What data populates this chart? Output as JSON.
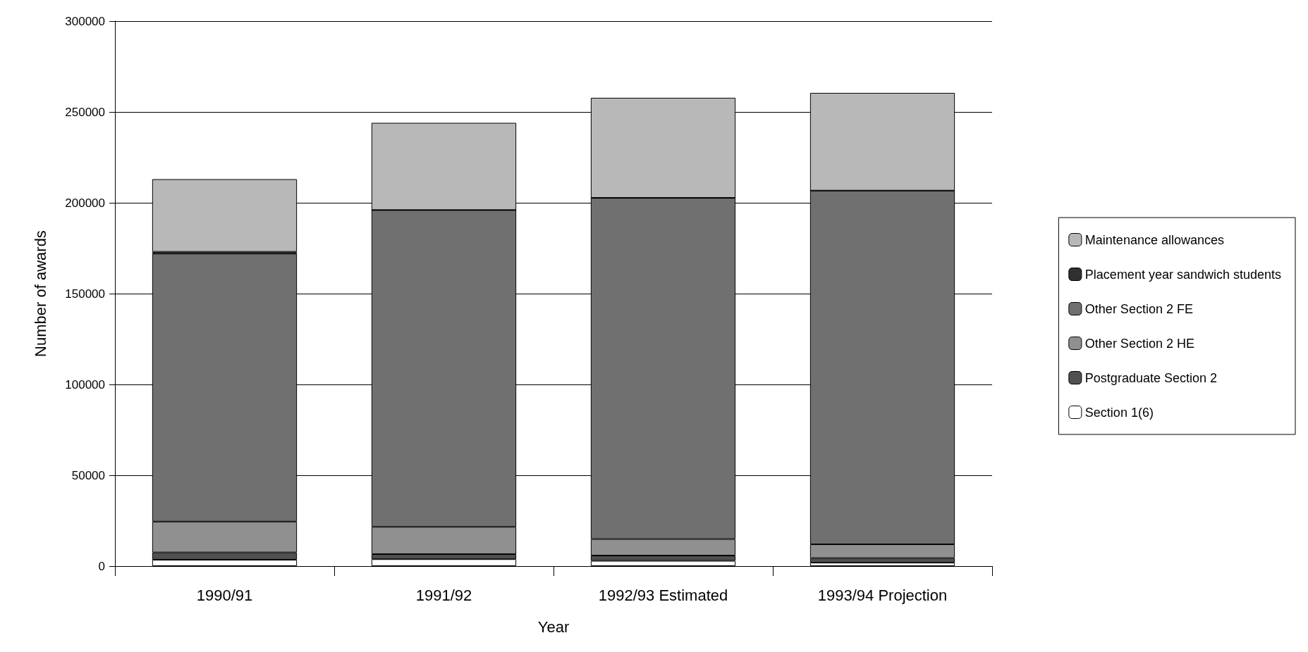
{
  "chart_data": {
    "type": "bar",
    "stacked": true,
    "xlabel": "Year",
    "ylabel": "Number of awards",
    "categories": [
      "1990/91",
      "1991/92",
      "1992/93 Estimated",
      "1993/94 Projection"
    ],
    "series": [
      {
        "name": "Section 1(6)",
        "color": "#ffffff",
        "values": [
          3500,
          3800,
          2900,
          1900
        ]
      },
      {
        "name": "Postgraduate Section 2",
        "color": "#505050",
        "values": [
          4000,
          2800,
          2900,
          2500
        ]
      },
      {
        "name": "Other Section 2 HE",
        "color": "#909090",
        "values": [
          17000,
          15000,
          9100,
          7600
        ]
      },
      {
        "name": "Other Section 2 FE",
        "color": "#707070",
        "values": [
          147500,
          174400,
          187800,
          194700
        ]
      },
      {
        "name": "Placement year sandwich students",
        "color": "#303030",
        "values": [
          1000,
          0,
          0,
          0
        ]
      },
      {
        "name": "Maintenance allowances",
        "color": "#b8b8b8",
        "values": [
          40000,
          48000,
          55100,
          53800
        ]
      }
    ],
    "ylim": [
      0,
      300000
    ],
    "yticks": [
      0,
      50000,
      100000,
      150000,
      200000,
      250000,
      300000
    ],
    "grid": "y",
    "legend": "right"
  }
}
